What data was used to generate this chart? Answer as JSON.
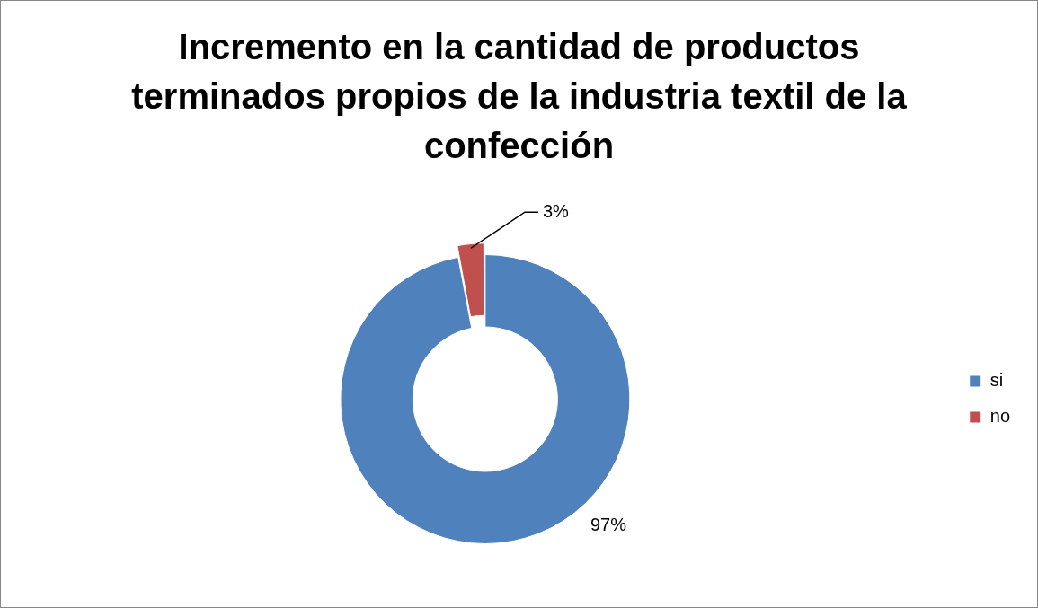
{
  "chart_data": {
    "type": "donut",
    "title": "Incremento en la cantidad de productos terminados propios de la industria textil de la confección",
    "categories": [
      "si",
      "no"
    ],
    "values": [
      97,
      3
    ],
    "colors": [
      "#4f81bd",
      "#c0504d"
    ],
    "value_labels": [
      "97%",
      "3%"
    ],
    "legend": "right"
  }
}
